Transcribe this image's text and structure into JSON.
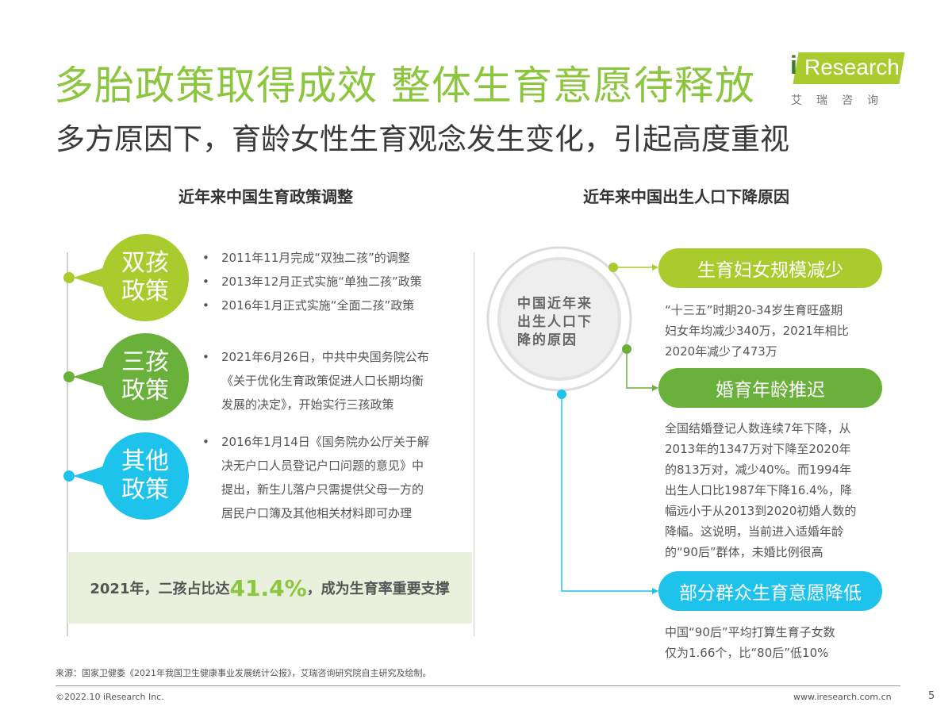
{
  "header": {
    "title": "多胎政策取得成效 整体生育意愿待释放",
    "subtitle": "多方原因下，育龄女性生育观念发生变化，引起高度重视"
  },
  "logo": {
    "mark": "i",
    "text": "Research",
    "cn": "艾瑞咨询",
    "color": "#a8cc2e"
  },
  "left": {
    "heading": "近年来中国生育政策调整",
    "policies": [
      {
        "label_l1": "双孩",
        "label_l2": "政策",
        "color": "#a8cc2e",
        "bullets": [
          "2011年11月完成“双独二孩”的调整",
          "2013年12月正式实施“单独二孩”政策",
          "2016年1月正式实施“全面二孩”政策"
        ]
      },
      {
        "label_l1": "三孩",
        "label_l2": "政策",
        "color": "#6ab13c",
        "lines": [
          "2021年6月26日，中共中央国务院公布",
          "《关于优化生育政策促进人口长期均衡",
          "发展的决定》，开始实行三孩政策"
        ]
      },
      {
        "label_l1": "其他",
        "label_l2": "政策",
        "color": "#1ec3ec",
        "lines": [
          "2016年1月14日《国务院办公厅关于解",
          "决无户口人员登记户口问题的意见》中",
          "提出，新生儿落户只需提供父母一方的",
          "居民户口簿及其他相关材料即可办理"
        ]
      }
    ],
    "summary": {
      "prefix": "2021年，二孩占比达",
      "value": "41.4%",
      "suffix": "，成为生育率重要支撑"
    }
  },
  "right": {
    "heading": "近年来中国出生人口下降原因",
    "center_l1": "中国近年来",
    "center_l2": "出生人口下",
    "center_l3": "降的原因",
    "reasons": [
      {
        "title": "生育妇女规模减少",
        "color": "#a8cc2e",
        "lines": [
          "“十三五”时期20-34岁生育旺盛期",
          "妇女年均减少340万，2021年相比",
          "2020年减少了473万"
        ]
      },
      {
        "title": "婚育年龄推迟",
        "color": "#6ab13c",
        "lines": [
          "全国结婚登记人数连续7年下降，从",
          "2013年的1347万对下降至2020年",
          "的813万对，减少40%。而1994年",
          "出生人口比1987年下降16.4%，降",
          "幅远小于从2013到2020初婚人数的",
          "降幅。这说明，当前进入适婚年龄",
          "的“90后”群体，未婚比例很高"
        ]
      },
      {
        "title": "部分群众生育意愿降低",
        "color": "#1ec3ec",
        "lines": [
          "中国“90后”平均打算生育子女数",
          "仅为1.66个，比“80后”低10%"
        ]
      }
    ]
  },
  "footer": {
    "source": "来源：国家卫健委《2021年我国卫生健康事业发展统计公报》，艾瑞咨询研究院自主研究及绘制。",
    "copyright": "©2022.10 iResearch Inc.",
    "url": "www.iresearch.com.cn",
    "page": "5"
  }
}
